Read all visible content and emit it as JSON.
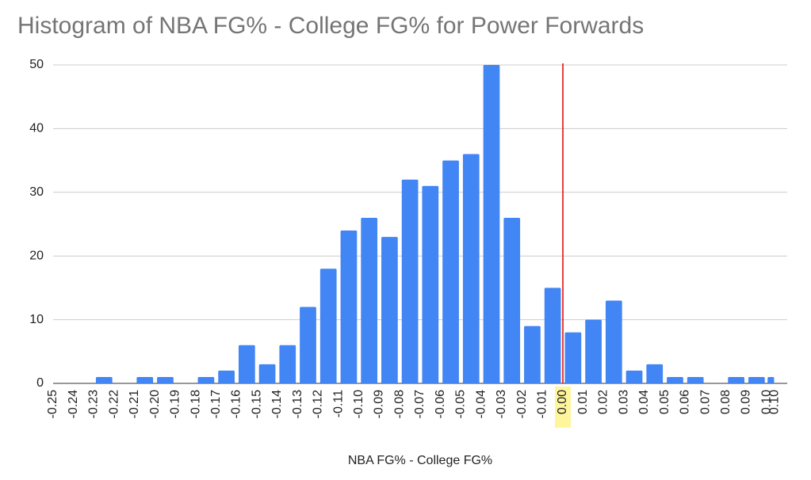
{
  "chart_data": {
    "type": "histogram",
    "title": "Histogram of NBA FG% - College FG% for Power Forwards",
    "x_label": "NBA FG% - College FG%",
    "bins": [
      -0.25,
      -0.24,
      -0.23,
      -0.22,
      -0.21,
      -0.2,
      -0.19,
      -0.18,
      -0.17,
      -0.16,
      -0.15,
      -0.14,
      -0.13,
      -0.12,
      -0.11,
      -0.1,
      -0.09,
      -0.08,
      -0.07,
      -0.06,
      -0.05,
      -0.04,
      -0.03,
      -0.02,
      -0.01,
      0,
      0.01,
      0.02,
      0.03,
      0.04,
      0.05,
      0.06,
      0.07,
      0.08,
      0.09,
      0.1,
      0.104
    ],
    "values": [
      0,
      0,
      1,
      0,
      1,
      1,
      0,
      1,
      2,
      6,
      3,
      6,
      12,
      18,
      24,
      26,
      23,
      32,
      31,
      35,
      36,
      50,
      26,
      9,
      15,
      8,
      10,
      13,
      2,
      3,
      1,
      1,
      0,
      1,
      1,
      1
    ],
    "color": "#4285f4",
    "xlim": [
      -0.25,
      0.104
    ],
    "xticks": [
      {
        "value": -0.25,
        "label": "-0.25"
      },
      {
        "value": -0.24,
        "label": "-0.24"
      },
      {
        "value": -0.23,
        "label": "-0.23"
      },
      {
        "value": -0.22,
        "label": "-0.22"
      },
      {
        "value": -0.21,
        "label": "-0.21"
      },
      {
        "value": -0.2,
        "label": "-0.20"
      },
      {
        "value": -0.19,
        "label": "-0.19"
      },
      {
        "value": -0.18,
        "label": "-0.18"
      },
      {
        "value": -0.17,
        "label": "-0.17"
      },
      {
        "value": -0.16,
        "label": "-0.16"
      },
      {
        "value": -0.15,
        "label": "-0.15"
      },
      {
        "value": -0.14,
        "label": "-0.14"
      },
      {
        "value": -0.13,
        "label": "-0.13"
      },
      {
        "value": -0.12,
        "label": "-0.12"
      },
      {
        "value": -0.11,
        "label": "-0.11"
      },
      {
        "value": -0.1,
        "label": "-0.10"
      },
      {
        "value": -0.09,
        "label": "-0.09"
      },
      {
        "value": -0.08,
        "label": "-0.08"
      },
      {
        "value": -0.07,
        "label": "-0.07"
      },
      {
        "value": -0.06,
        "label": "-0.06"
      },
      {
        "value": -0.05,
        "label": "-0.05"
      },
      {
        "value": -0.04,
        "label": "-0.04"
      },
      {
        "value": -0.03,
        "label": "-0.03"
      },
      {
        "value": -0.02,
        "label": "-0.02"
      },
      {
        "value": -0.01,
        "label": "-0.01"
      },
      {
        "value": 0,
        "label": "0.00"
      },
      {
        "value": 0.01,
        "label": "0.01"
      },
      {
        "value": 0.02,
        "label": "0.02"
      },
      {
        "value": 0.03,
        "label": "0.03"
      },
      {
        "value": 0.04,
        "label": "0.04"
      },
      {
        "value": 0.05,
        "label": "0.05"
      },
      {
        "value": 0.06,
        "label": "0.06"
      },
      {
        "value": 0.07,
        "label": "0.07"
      },
      {
        "value": 0.08,
        "label": "0.08"
      },
      {
        "value": 0.09,
        "label": "0.09"
      },
      {
        "value": 0.1,
        "label": "0.10"
      },
      {
        "value": 0.104,
        "label": "0.10"
      }
    ],
    "ylim": [
      0,
      50
    ],
    "yticks": [
      0,
      10,
      20,
      30,
      40,
      50
    ],
    "grid": true,
    "reference_line": {
      "x": 0,
      "color": "#e00000"
    }
  }
}
